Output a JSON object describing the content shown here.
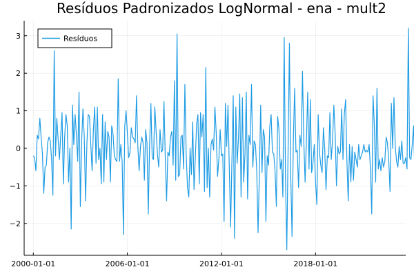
{
  "chart_data": {
    "type": "line",
    "title": "Resíduos Padronizados LogNormal - ena - mult2",
    "xlabel": "",
    "ylabel": "",
    "x_ticks": [
      "2000-01-01",
      "2006-01-01",
      "2012-01-01",
      "2018-01-01"
    ],
    "y_ticks": [
      -2,
      -1,
      0,
      1,
      2,
      3
    ],
    "ylim": [
      -2.85,
      3.4
    ],
    "xlim": [
      "1999-06-01",
      "2023-10-01"
    ],
    "grid": true,
    "legend_position": "top-left",
    "series": [
      {
        "name": "Resíduos",
        "color": "#1f9ce4",
        "start": "2000-01-01",
        "frequency": "monthly",
        "values": [
          -0.2,
          -0.25,
          -0.6,
          0.35,
          0.25,
          0.8,
          0.3,
          -0.15,
          -1.2,
          -0.5,
          -0.45,
          0.15,
          0.3,
          0.2,
          -0.3,
          -1.25,
          2.6,
          -0.2,
          0.8,
          0.25,
          -0.3,
          0.35,
          0.95,
          -0.95,
          0.3,
          0.9,
          0.6,
          -0.9,
          0.0,
          -2.15,
          1.15,
          0.1,
          0.9,
          0.35,
          -0.35,
          1.5,
          -1.55,
          0.2,
          1.05,
          0.3,
          -1.4,
          0.1,
          0.9,
          0.85,
          0.1,
          -0.6,
          0.5,
          1.1,
          -0.4,
          1.1,
          -0.3,
          0.0,
          -0.95,
          0.9,
          -0.9,
          0.7,
          -0.3,
          0.45,
          0.3,
          -0.9,
          0.6,
          0.4,
          -0.2,
          -0.3,
          -0.35,
          1.85,
          -0.35,
          0.1,
          -0.35,
          -2.3,
          0.6,
          1.0,
          0.4,
          -0.25,
          -0.1,
          0.55,
          0.3,
          0.25,
          0.15,
          1.4,
          0.05,
          -0.6,
          0.05,
          0.3,
          0.15,
          -0.85,
          0.5,
          0.15,
          -1.75,
          0.1,
          1.2,
          -0.25,
          -0.3,
          1.1,
          0.45,
          -0.15,
          -0.5,
          0.5,
          -0.1,
          -0.05,
          1.25,
          -0.25,
          -1.4,
          -0.1,
          -0.2,
          0.3,
          0.45,
          -0.45,
          1.8,
          -0.85,
          3.05,
          -0.75,
          -0.7,
          0.3,
          0.35,
          -0.55,
          1.7,
          -0.15,
          -1.05,
          -1.3,
          0.0,
          -0.7,
          0.7,
          -1.1,
          -0.25,
          0.65,
          0.9,
          -0.95,
          0.95,
          0.3,
          0.9,
          -1.15,
          2.15,
          -1.05,
          0.0,
          -1.3,
          0.1,
          0.25,
          -0.05,
          1.1,
          0.4,
          -0.75,
          -0.3,
          0.5,
          -0.2,
          -0.15,
          -1.95,
          1.2,
          0.05,
          1.15,
          -0.55,
          -2.1,
          -0.35,
          1.4,
          -2.4,
          1.1,
          -0.4,
          0.25,
          1.45,
          -1.3,
          1.35,
          -0.9,
          -0.15,
          1.5,
          -1.35,
          0.35,
          0.1,
          1.7,
          -0.5,
          0.2,
          0.1,
          -0.6,
          -2.25,
          -0.7,
          1.15,
          -0.65,
          0.5,
          0.3,
          -1.95,
          -0.2,
          -0.45,
          0.6,
          0.9,
          -0.1,
          -0.15,
          -0.6,
          -1.55,
          0.85,
          0.5,
          -0.55,
          -0.3,
          -1.3,
          2.95,
          -0.8,
          -2.7,
          0.0,
          2.8,
          -0.7,
          -2.35,
          0.2,
          1.6,
          -0.1,
          -0.05,
          -1.05,
          0.35,
          0.05,
          2.05,
          0.2,
          -0.9,
          0.2,
          1.5,
          -0.55,
          1.3,
          -0.65,
          -0.4,
          0.1,
          -0.9,
          -1.5,
          0.9,
          -0.1,
          -0.45,
          -0.65,
          0.55,
          0.0,
          -1.1,
          -0.2,
          -0.25,
          0.95,
          -0.3,
          0.2,
          1.15,
          0.4,
          -1.0,
          0.05,
          -0.15,
          -0.1,
          1.05,
          -0.3,
          0.9,
          1.3,
          -0.35,
          -1.4,
          0.1,
          -0.9,
          0.05,
          -0.85,
          -0.1,
          -0.3,
          -0.5,
          0.1,
          -0.3,
          -0.2,
          -0.1,
          0.1,
          -0.1,
          -0.05,
          -0.1,
          0.1,
          -0.55,
          -1.75,
          1.4,
          0.6,
          -0.9,
          1.6,
          -0.55,
          -0.3,
          -0.6,
          -0.25,
          -0.5,
          -0.35,
          0.3,
          0.15,
          -0.3,
          -1.15,
          1.2,
          0.0,
          1.35,
          0.05,
          -0.35,
          -0.5,
          0.05,
          -0.3,
          0.2,
          -0.4,
          -0.4,
          -0.25,
          -0.55,
          3.2,
          -0.25,
          -0.3,
          0.1,
          0.6,
          -0.8,
          -0.9,
          -0.15,
          -0.05,
          -0.3,
          0.1,
          -0.3
        ]
      }
    ]
  }
}
